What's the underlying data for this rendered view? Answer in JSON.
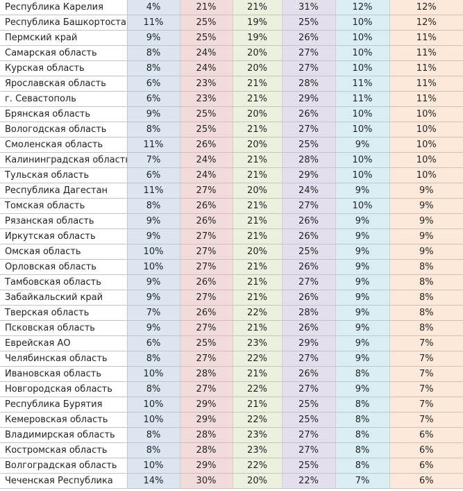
{
  "table": {
    "rows": [
      {
        "region": "Республика Карелия",
        "values": [
          "4%",
          "21%",
          "21%",
          "31%",
          "12%",
          "12%"
        ]
      },
      {
        "region": "Республика Башкортостан",
        "values": [
          "11%",
          "25%",
          "19%",
          "25%",
          "10%",
          "12%"
        ]
      },
      {
        "region": "Пермский край",
        "values": [
          "9%",
          "25%",
          "19%",
          "26%",
          "10%",
          "11%"
        ]
      },
      {
        "region": "Самарская область",
        "values": [
          "8%",
          "24%",
          "20%",
          "27%",
          "10%",
          "11%"
        ]
      },
      {
        "region": "Курская область",
        "values": [
          "8%",
          "24%",
          "20%",
          "27%",
          "10%",
          "11%"
        ]
      },
      {
        "region": "Ярославская область",
        "values": [
          "6%",
          "23%",
          "21%",
          "28%",
          "11%",
          "11%"
        ]
      },
      {
        "region": "г. Севастополь",
        "values": [
          "6%",
          "23%",
          "21%",
          "29%",
          "11%",
          "11%"
        ]
      },
      {
        "region": "Брянская область",
        "values": [
          "9%",
          "25%",
          "20%",
          "26%",
          "10%",
          "10%"
        ]
      },
      {
        "region": "Вологодская область",
        "values": [
          "8%",
          "25%",
          "21%",
          "27%",
          "10%",
          "10%"
        ]
      },
      {
        "region": "Смоленская область",
        "values": [
          "11%",
          "26%",
          "20%",
          "25%",
          "9%",
          "10%"
        ]
      },
      {
        "region": "Калининградская область",
        "values": [
          "7%",
          "24%",
          "21%",
          "28%",
          "10%",
          "10%"
        ]
      },
      {
        "region": "Тульская область",
        "values": [
          "6%",
          "24%",
          "21%",
          "29%",
          "10%",
          "10%"
        ]
      },
      {
        "region": "Республика Дагестан",
        "values": [
          "11%",
          "27%",
          "20%",
          "24%",
          "9%",
          "9%"
        ]
      },
      {
        "region": "Томская область",
        "values": [
          "8%",
          "26%",
          "21%",
          "27%",
          "10%",
          "9%"
        ]
      },
      {
        "region": "Рязанская область",
        "values": [
          "9%",
          "26%",
          "21%",
          "26%",
          "9%",
          "9%"
        ]
      },
      {
        "region": "Иркутская область",
        "values": [
          "9%",
          "27%",
          "21%",
          "26%",
          "9%",
          "9%"
        ]
      },
      {
        "region": "Омская область",
        "values": [
          "10%",
          "27%",
          "20%",
          "25%",
          "9%",
          "9%"
        ]
      },
      {
        "region": "Орловская область",
        "values": [
          "10%",
          "27%",
          "21%",
          "26%",
          "9%",
          "8%"
        ]
      },
      {
        "region": "Тамбовская область",
        "values": [
          "9%",
          "26%",
          "21%",
          "27%",
          "9%",
          "8%"
        ]
      },
      {
        "region": "Забайкальский край",
        "values": [
          "9%",
          "27%",
          "21%",
          "26%",
          "9%",
          "8%"
        ]
      },
      {
        "region": "Тверская область",
        "values": [
          "7%",
          "26%",
          "22%",
          "28%",
          "9%",
          "8%"
        ]
      },
      {
        "region": "Псковская область",
        "values": [
          "9%",
          "27%",
          "21%",
          "26%",
          "9%",
          "8%"
        ]
      },
      {
        "region": "Еврейская АО",
        "values": [
          "6%",
          "25%",
          "23%",
          "29%",
          "9%",
          "7%"
        ]
      },
      {
        "region": "Челябинская область",
        "values": [
          "8%",
          "27%",
          "22%",
          "27%",
          "9%",
          "7%"
        ]
      },
      {
        "region": "Ивановская область",
        "values": [
          "10%",
          "28%",
          "21%",
          "26%",
          "8%",
          "7%"
        ]
      },
      {
        "region": "Новгородская область",
        "values": [
          "8%",
          "27%",
          "22%",
          "27%",
          "9%",
          "7%"
        ]
      },
      {
        "region": "Республика Бурятия",
        "values": [
          "10%",
          "29%",
          "21%",
          "25%",
          "8%",
          "7%"
        ]
      },
      {
        "region": "Кемеровская область",
        "values": [
          "10%",
          "29%",
          "22%",
          "25%",
          "8%",
          "7%"
        ]
      },
      {
        "region": "Владимирская область",
        "values": [
          "8%",
          "28%",
          "23%",
          "27%",
          "8%",
          "6%"
        ]
      },
      {
        "region": "Костромская область",
        "values": [
          "8%",
          "28%",
          "23%",
          "27%",
          "8%",
          "6%"
        ]
      },
      {
        "region": "Волгоградская область",
        "values": [
          "10%",
          "29%",
          "22%",
          "25%",
          "8%",
          "6%"
        ]
      },
      {
        "region": "Чеченская Республика",
        "values": [
          "14%",
          "30%",
          "20%",
          "22%",
          "7%",
          "6%"
        ]
      }
    ]
  },
  "colors": {
    "col1": "#dce6f1",
    "col2": "#f2dcdb",
    "col3": "#ebf1de",
    "col4": "#e4dfec",
    "col5": "#daeef3",
    "col6": "#fde9d9",
    "grid": "#c4c4c4"
  }
}
